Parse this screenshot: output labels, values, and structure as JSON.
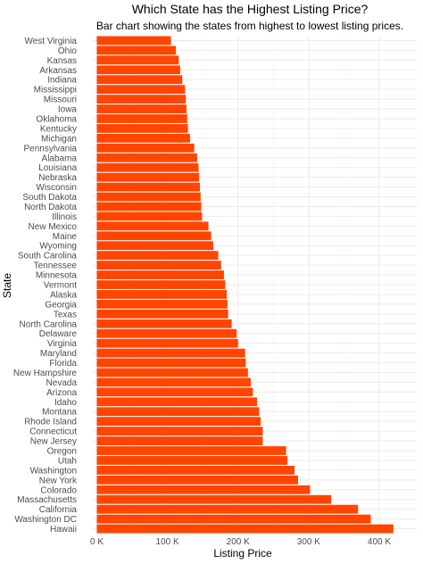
{
  "chart_data": {
    "type": "bar",
    "orientation": "horizontal",
    "title": "Which State has the Highest Listing Price?",
    "subtitle": "Bar chart showing the states from highest to lowest listing prices.",
    "xlabel": "Listing Price",
    "ylabel": "State",
    "xlim": [
      0,
      430000
    ],
    "x_ticks": [
      0,
      100000,
      200000,
      300000,
      400000
    ],
    "x_tick_labels": [
      "0 K",
      "100 K",
      "200 K",
      "300 K",
      "400 K"
    ],
    "grid": true,
    "bar_color": "#FF4500",
    "categories": [
      "West Virginia",
      "Ohio",
      "Kansas",
      "Arkansas",
      "Indiana",
      "Mississippi",
      "Missouri",
      "Iowa",
      "Oklahoma",
      "Kentucky",
      "Michigan",
      "Pennsylvania",
      "Alabama",
      "Louisiana",
      "Nebraska",
      "Wisconsin",
      "South Dakota",
      "North Dakota",
      "Illinois",
      "New Mexico",
      "Maine",
      "Wyoming",
      "South Carolina",
      "Tennessee",
      "Minnesota",
      "Vermont",
      "Alaska",
      "Georgia",
      "Texas",
      "North Carolina",
      "Delaware",
      "Virginia",
      "Maryland",
      "Florida",
      "New Hampshire",
      "Nevada",
      "Arizona",
      "Idaho",
      "Montana",
      "Rhode Island",
      "Connecticut",
      "New Jersey",
      "Oregon",
      "Utah",
      "Washington",
      "New York",
      "Colorado",
      "Massachusetts",
      "California",
      "Washington DC",
      "Hawaii"
    ],
    "values": [
      105000,
      112000,
      116000,
      118000,
      121000,
      125000,
      126000,
      127000,
      128000,
      129000,
      132000,
      138000,
      142000,
      144000,
      145000,
      146000,
      147000,
      148000,
      149000,
      158000,
      162000,
      165000,
      172000,
      176000,
      180000,
      182000,
      184000,
      185000,
      186000,
      191000,
      198000,
      200000,
      210000,
      211000,
      214000,
      218000,
      221000,
      227000,
      230000,
      232000,
      235000,
      235000,
      268000,
      270000,
      280000,
      285000,
      302000,
      332000,
      370000,
      388000,
      420000
    ]
  }
}
